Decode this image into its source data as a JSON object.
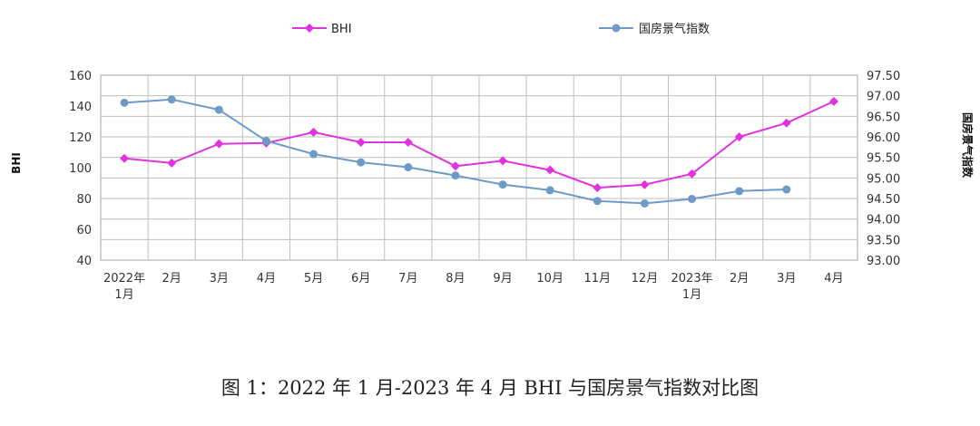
{
  "caption": "图 1：2022 年 1 月-2023 年 4 月 BHI 与国房景气指数对比图",
  "chart_data": {
    "type": "line",
    "title": "",
    "categories": [
      [
        "2022年",
        "1月"
      ],
      [
        "2月"
      ],
      [
        "3月"
      ],
      [
        "4月"
      ],
      [
        "5月"
      ],
      [
        "6月"
      ],
      [
        "7月"
      ],
      [
        "8月"
      ],
      [
        "9月"
      ],
      [
        "10月"
      ],
      [
        "11月"
      ],
      [
        "12月"
      ],
      [
        "2023年",
        "1月"
      ],
      [
        "2月"
      ],
      [
        "3月"
      ],
      [
        "4月"
      ]
    ],
    "ylabel_left": "BHI",
    "ylabel_right": "国房景气指数",
    "y_left": {
      "min": 40,
      "max": 160,
      "step": 20,
      "ticks": [
        "40",
        "60",
        "80",
        "100",
        "120",
        "140",
        "160"
      ]
    },
    "y_right": {
      "min": 93.0,
      "max": 97.5,
      "step": 0.5,
      "ticks": [
        "93.00",
        "93.50",
        "94.00",
        "94.50",
        "95.00",
        "95.50",
        "96.00",
        "96.50",
        "97.00",
        "97.50"
      ]
    },
    "grid": true,
    "legend_position": "top",
    "series": [
      {
        "name": "BHI",
        "axis": "left",
        "color": "#e033e0",
        "marker": "diamond",
        "values": [
          106,
          103,
          115.5,
          116,
          123,
          116.5,
          116.5,
          101,
          104.5,
          98.5,
          87,
          89,
          96,
          120,
          129,
          143
        ]
      },
      {
        "name": "国房景气指数",
        "axis": "right",
        "color": "#6d9ac7",
        "marker": "circle",
        "values": [
          96.83,
          96.91,
          96.66,
          95.9,
          95.58,
          95.38,
          95.26,
          95.06,
          94.84,
          94.7,
          94.44,
          94.38,
          94.49,
          94.68,
          94.72,
          null
        ]
      }
    ]
  }
}
